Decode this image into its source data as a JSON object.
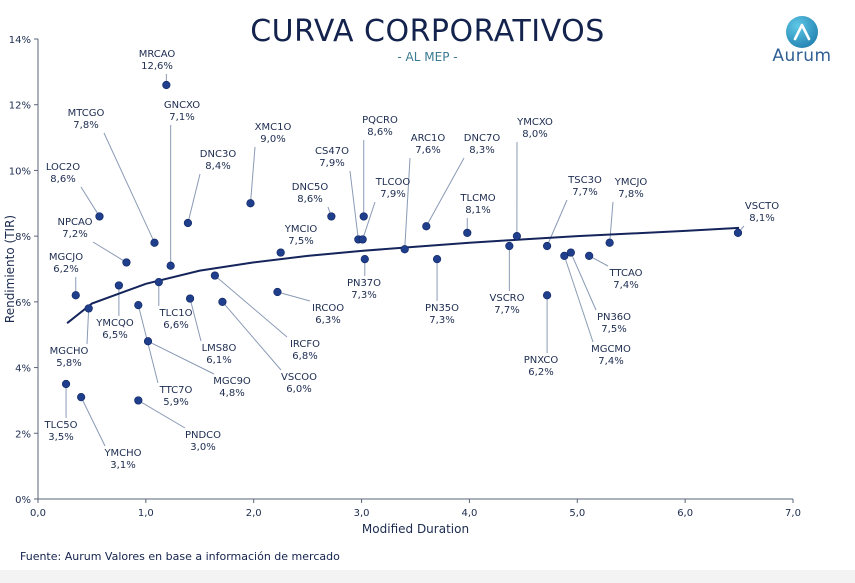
{
  "header": {
    "title": "CURVA CORPORATIVOS",
    "subtitle": "- AL MEP -"
  },
  "logo": {
    "name": "Aurum",
    "icon": "aurum-logo-icon"
  },
  "footer": {
    "source": "Fuente: Aurum Valores en base a información de mercado"
  },
  "colors": {
    "point": "#1f3f8c",
    "curve": "#15255c",
    "leader": "#8a9ab5",
    "label": "#1c2b4f",
    "axis": "#5a6478",
    "grid": "#eeeeee"
  },
  "chart_data": {
    "type": "scatter",
    "xlabel": "Modified Duration",
    "ylabel": "Rendimiento (TIR)",
    "xlim": [
      0,
      7
    ],
    "ylim": [
      0,
      14
    ],
    "xticks": [
      0,
      1,
      2,
      3,
      4,
      5,
      6,
      7
    ],
    "xtick_labels": [
      "0,0",
      "1,0",
      "2,0",
      "3,0",
      "4,0",
      "5,0",
      "6,0",
      "7,0"
    ],
    "yticks": [
      0,
      2,
      4,
      6,
      8,
      10,
      12,
      14
    ],
    "ytick_labels": [
      "0%",
      "2%",
      "4%",
      "6%",
      "8%",
      "10%",
      "12%",
      "14%"
    ],
    "grid": false,
    "trendline": {
      "type": "logarithmic",
      "x": [
        0.27,
        0.5,
        1.0,
        1.5,
        2.0,
        2.5,
        3.0,
        3.5,
        4.0,
        4.5,
        5.0,
        5.5,
        6.0,
        6.5
      ],
      "y": [
        5.35,
        5.95,
        6.55,
        6.95,
        7.2,
        7.4,
        7.55,
        7.68,
        7.8,
        7.9,
        8.0,
        8.08,
        8.16,
        8.25
      ]
    },
    "points": [
      {
        "name": "MRCAO",
        "label": "12,6%",
        "x": 1.19,
        "y": 12.6
      },
      {
        "name": "MTCGO",
        "label": "7,8%",
        "x": 1.08,
        "y": 7.8
      },
      {
        "name": "GNCXO",
        "label": "7,1%",
        "x": 1.23,
        "y": 7.1
      },
      {
        "name": "DNC3O",
        "label": "8,4%",
        "x": 1.39,
        "y": 8.4
      },
      {
        "name": "XMC1O",
        "label": "9,0%",
        "x": 1.97,
        "y": 9.0
      },
      {
        "name": "LOC2O",
        "label": "8,6%",
        "x": 0.57,
        "y": 8.6
      },
      {
        "name": "NPCAO",
        "label": "7,2%",
        "x": 0.82,
        "y": 7.2
      },
      {
        "name": "MGCJO",
        "label": "6,2%",
        "x": 0.35,
        "y": 6.2
      },
      {
        "name": "YMCQO",
        "label": "6,5%",
        "x": 0.75,
        "y": 6.5
      },
      {
        "name": "MGCHO",
        "label": "5,8%",
        "x": 0.47,
        "y": 5.8
      },
      {
        "name": "TLC5O",
        "label": "3,5%",
        "x": 0.26,
        "y": 3.5
      },
      {
        "name": "YMCHO",
        "label": "3,1%",
        "x": 0.4,
        "y": 3.1
      },
      {
        "name": "TLC1O",
        "label": "6,6%",
        "x": 1.12,
        "y": 6.6
      },
      {
        "name": "TTC7O",
        "label": "5,9%",
        "x": 0.93,
        "y": 5.9
      },
      {
        "name": "PNDCO",
        "label": "3,0%",
        "x": 0.93,
        "y": 3.0
      },
      {
        "name": "MGC9O",
        "label": "4,8%",
        "x": 1.02,
        "y": 4.8
      },
      {
        "name": "LMS8O",
        "label": "6,1%",
        "x": 1.41,
        "y": 6.1
      },
      {
        "name": "VSCOO",
        "label": "6,0%",
        "x": 1.71,
        "y": 6.0
      },
      {
        "name": "IRCFO",
        "label": "6,8%",
        "x": 1.64,
        "y": 6.8
      },
      {
        "name": "YMCIO",
        "label": "7,5%",
        "x": 2.25,
        "y": 7.5
      },
      {
        "name": "IRCOO",
        "label": "6,3%",
        "x": 2.22,
        "y": 6.3
      },
      {
        "name": "DNC5O",
        "label": "8,6%",
        "x": 2.72,
        "y": 8.6
      },
      {
        "name": "CS47O",
        "label": "7,9%",
        "x": 2.97,
        "y": 7.9
      },
      {
        "name": "PQCRO",
        "label": "8,6%",
        "x": 3.02,
        "y": 8.6
      },
      {
        "name": "TLCOO",
        "label": "7,9%",
        "x": 3.01,
        "y": 7.9
      },
      {
        "name": "PN37O",
        "label": "7,3%",
        "x": 3.03,
        "y": 7.3
      },
      {
        "name": "ARC1O",
        "label": "7,6%",
        "x": 3.4,
        "y": 7.6
      },
      {
        "name": "DNC7O",
        "label": "8,3%",
        "x": 3.6,
        "y": 8.3
      },
      {
        "name": "PN35O",
        "label": "7,3%",
        "x": 3.7,
        "y": 7.3
      },
      {
        "name": "TLCMO",
        "label": "8,1%",
        "x": 3.98,
        "y": 8.1
      },
      {
        "name": "YMCXO",
        "label": "8,0%",
        "x": 4.44,
        "y": 8.0
      },
      {
        "name": "VSCRO",
        "label": "7,7%",
        "x": 4.37,
        "y": 7.7
      },
      {
        "name": "TSC3O",
        "label": "7,7%",
        "x": 4.72,
        "y": 7.7
      },
      {
        "name": "PNXCO",
        "label": "6,2%",
        "x": 4.72,
        "y": 6.2
      },
      {
        "name": "MGCMO",
        "label": "7,4%",
        "x": 4.88,
        "y": 7.4
      },
      {
        "name": "PN36O",
        "label": "7,5%",
        "x": 4.94,
        "y": 7.5
      },
      {
        "name": "TTCAO",
        "label": "7,4%",
        "x": 5.11,
        "y": 7.4
      },
      {
        "name": "YMCJO",
        "label": "7,8%",
        "x": 5.3,
        "y": 7.8
      },
      {
        "name": "VSCTO",
        "label": "8,1%",
        "x": 6.49,
        "y": 8.1
      }
    ]
  }
}
